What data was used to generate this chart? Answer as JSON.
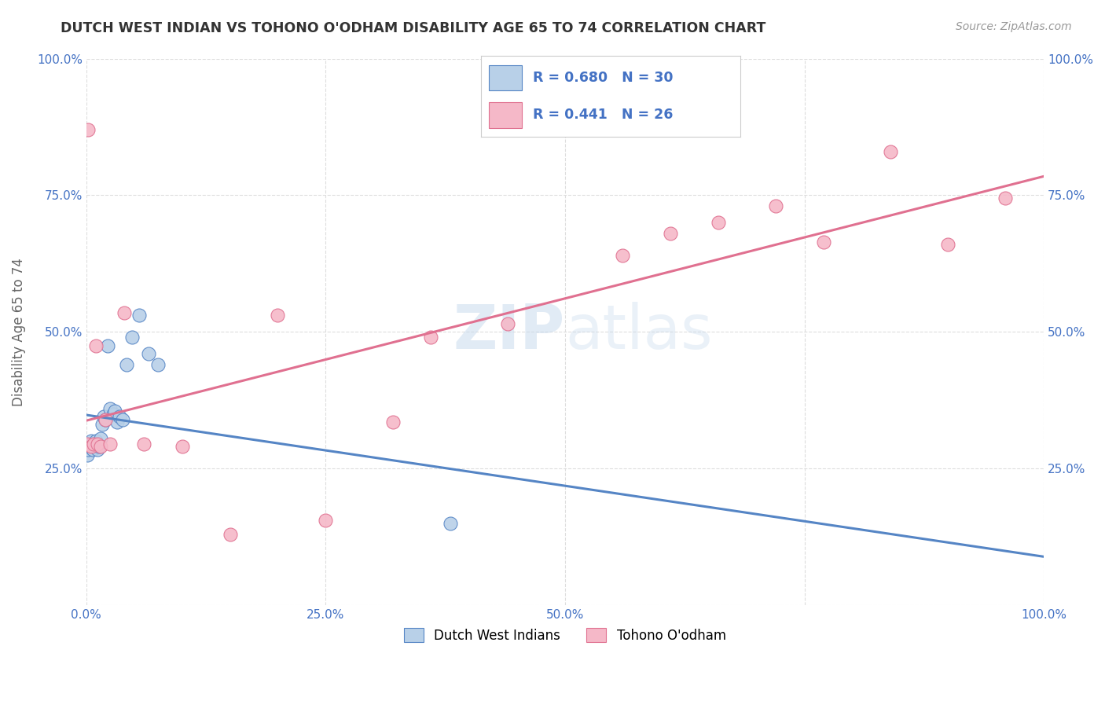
{
  "title": "DUTCH WEST INDIAN VS TOHONO O'ODHAM DISABILITY AGE 65 TO 74 CORRELATION CHART",
  "source": "Source: ZipAtlas.com",
  "ylabel": "Disability Age 65 to 74",
  "blue_R": 0.68,
  "blue_N": 30,
  "pink_R": 0.441,
  "pink_N": 26,
  "blue_color": "#b8d0e8",
  "pink_color": "#f5b8c8",
  "blue_line_color": "#5585c5",
  "pink_line_color": "#e07090",
  "legend_text_color": "#4472c4",
  "title_color": "#333333",
  "background_color": "#ffffff",
  "grid_color": "#dddddd",
  "blue_points_x": [
    0.001,
    0.002,
    0.003,
    0.004,
    0.005,
    0.006,
    0.007,
    0.008,
    0.009,
    0.01,
    0.011,
    0.012,
    0.013,
    0.015,
    0.017,
    0.018,
    0.02,
    0.022,
    0.025,
    0.028,
    0.03,
    0.032,
    0.035,
    0.038,
    0.042,
    0.048,
    0.055,
    0.065,
    0.075,
    0.38
  ],
  "blue_points_y": [
    0.275,
    0.285,
    0.29,
    0.295,
    0.3,
    0.295,
    0.285,
    0.29,
    0.295,
    0.3,
    0.295,
    0.285,
    0.29,
    0.305,
    0.33,
    0.345,
    0.34,
    0.475,
    0.36,
    0.35,
    0.355,
    0.335,
    0.345,
    0.34,
    0.44,
    0.49,
    0.53,
    0.46,
    0.44,
    0.15
  ],
  "pink_points_x": [
    0.001,
    0.002,
    0.005,
    0.008,
    0.01,
    0.012,
    0.015,
    0.02,
    0.025,
    0.04,
    0.06,
    0.1,
    0.15,
    0.2,
    0.25,
    0.32,
    0.36,
    0.44,
    0.56,
    0.61,
    0.66,
    0.72,
    0.77,
    0.84,
    0.9,
    0.96
  ],
  "pink_points_y": [
    0.295,
    0.87,
    0.29,
    0.295,
    0.475,
    0.295,
    0.29,
    0.34,
    0.295,
    0.535,
    0.295,
    0.29,
    0.13,
    0.53,
    0.155,
    0.335,
    0.49,
    0.515,
    0.64,
    0.68,
    0.7,
    0.73,
    0.665,
    0.83,
    0.66,
    0.745
  ],
  "xlim": [
    0.0,
    1.0
  ],
  "ylim": [
    0.0,
    1.0
  ]
}
